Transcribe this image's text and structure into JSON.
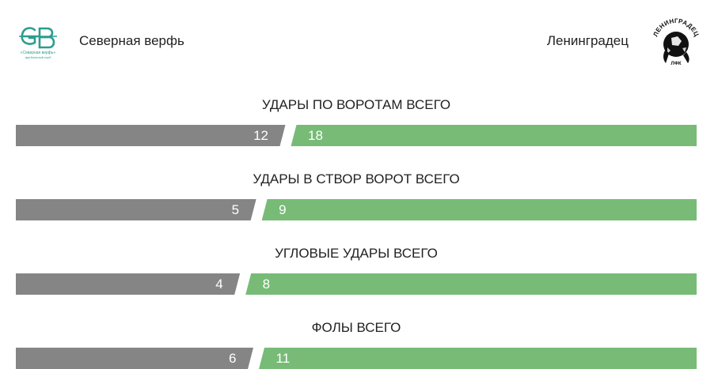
{
  "match": {
    "home": {
      "name": "Северная верфь",
      "logo_icon": "severnaya-verf-logo",
      "logo_small_text_1": "«Северная верфь»",
      "logo_small_text_2": "футбольный клуб"
    },
    "away": {
      "name": "Ленинградец",
      "logo_icon": "leningradets-logo",
      "logo_text": "ЛЕНИНГРАДЕЦ",
      "logo_sub": "ЛФК"
    }
  },
  "colors": {
    "home_bar": "#858585",
    "away_bar": "#77bb77",
    "brand_teal": "#2a9d8f"
  },
  "stats": [
    {
      "title": "УДАРЫ ПО ВОРОТАМ ВСЕГО",
      "home": 12,
      "away": 18
    },
    {
      "title": "УДАРЫ В СТВОР ВОРОТ ВСЕГО",
      "home": 5,
      "away": 9
    },
    {
      "title": "УГЛОВЫЕ УДАРЫ ВСЕГО",
      "home": 4,
      "away": 8
    },
    {
      "title": "ФОЛЫ ВСЕГО",
      "home": 6,
      "away": 11
    }
  ]
}
